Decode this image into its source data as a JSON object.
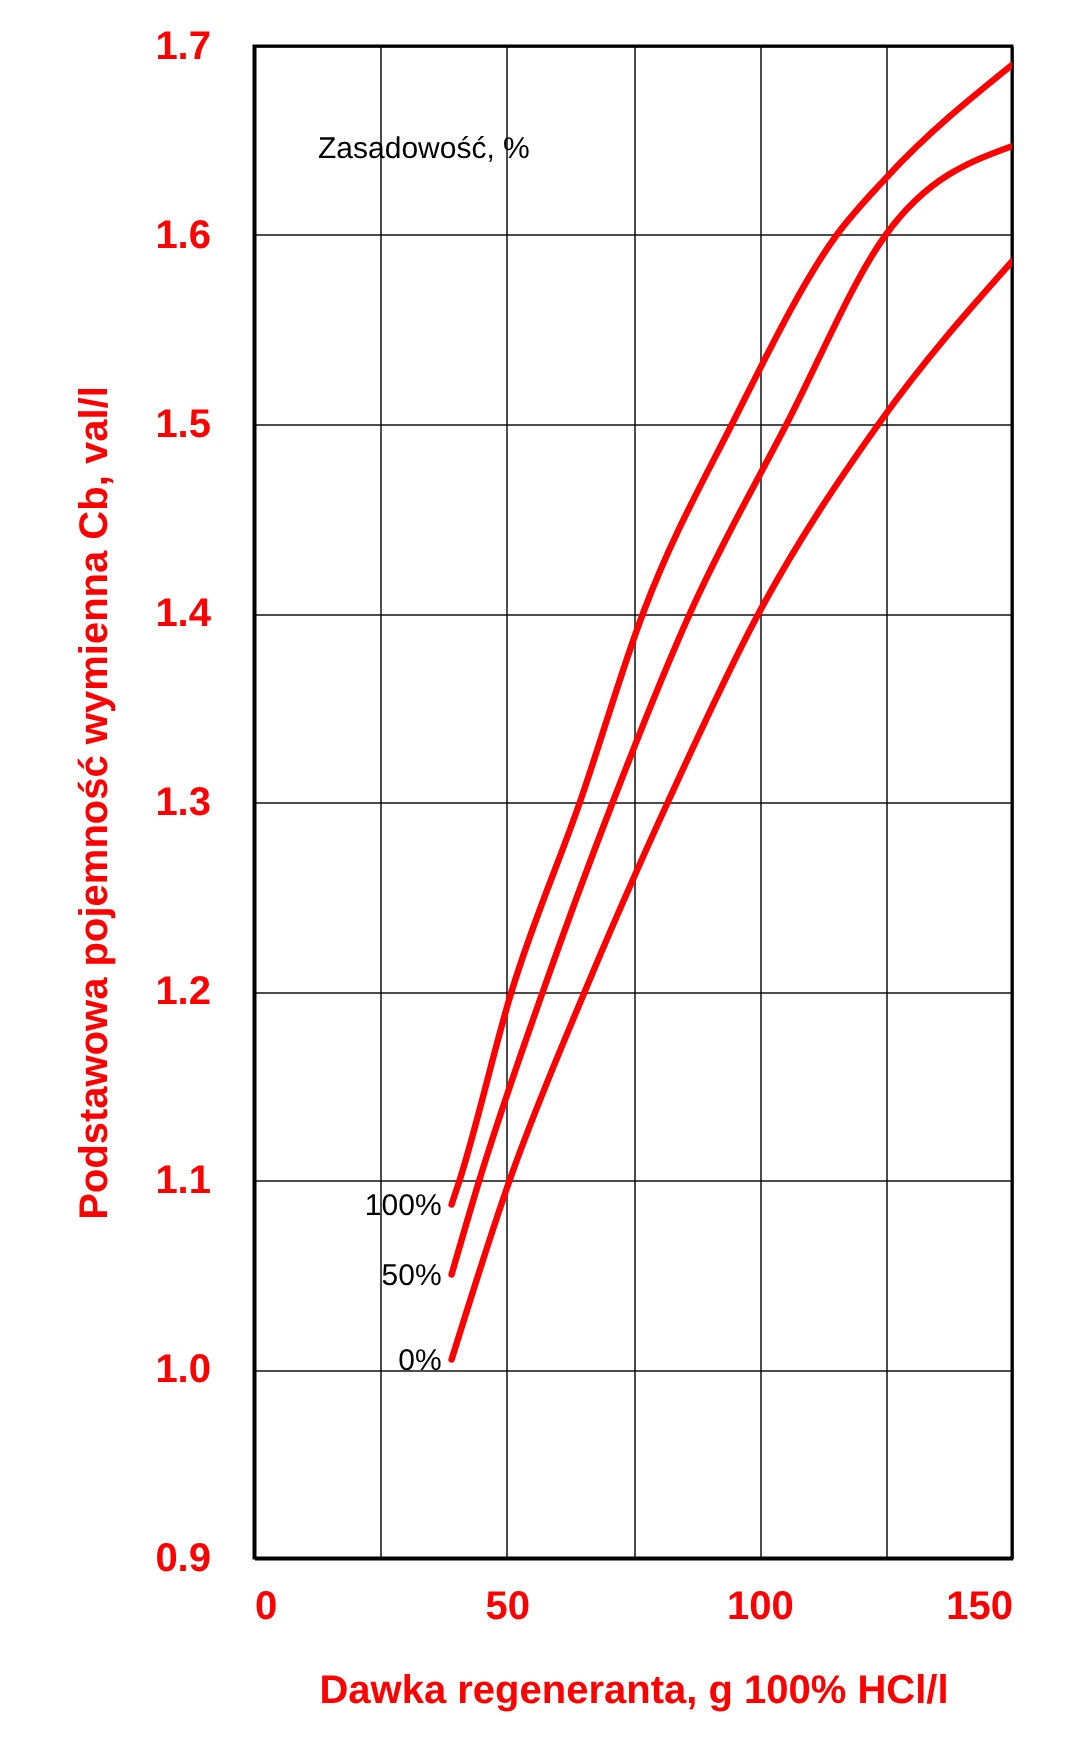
{
  "chart_data": {
    "type": "line",
    "xlabel": "Dawka regeneranta, g 100% HCl/l",
    "ylabel": "Podstawowa pojemność wymienna Cb, val/l",
    "legend_title": "Zasadowość, %",
    "xlim": [
      0,
      150
    ],
    "ylim": [
      0.9,
      1.7
    ],
    "xticks": [
      0,
      {
        "value": 25,
        "label": null
      },
      50,
      {
        "value": 75,
        "label": null
      },
      100,
      {
        "value": 125,
        "label": null
      },
      150
    ],
    "yticks": [
      0.9,
      {
        "value": 1,
        "label": "1.0"
      },
      1.1,
      1.2,
      1.3,
      1.4,
      1.5,
      1.6,
      1.7
    ],
    "grid": true,
    "line_style": "solid",
    "marker": "none",
    "series": [
      {
        "name": "100%",
        "color": "#ff0000",
        "x": [
          39.1,
          40.7,
          51,
          64.5,
          77,
          94.6,
          115.3,
          125,
          150
        ],
        "values": [
          1.087,
          1.1,
          1.2,
          1.3,
          1.4,
          1.5,
          1.6,
          1.63,
          1.69
        ]
      },
      {
        "name": "50%",
        "color": "#ff0000",
        "x": [
          39.1,
          44.6,
          57.2,
          71,
          86.3,
          105.4,
          125,
          150
        ],
        "values": [
          1.05,
          1.1,
          1.2,
          1.3,
          1.4,
          1.5,
          1.6,
          1.647
        ]
      },
      {
        "name": "0%",
        "color": "#ff0000",
        "x": [
          39.1,
          50.6,
          65.5,
          81.9,
          99.9,
          123.6,
          150
        ],
        "values": [
          1.005,
          1.1,
          1.2,
          1.3,
          1.4,
          1.5,
          1.586
        ]
      }
    ]
  }
}
